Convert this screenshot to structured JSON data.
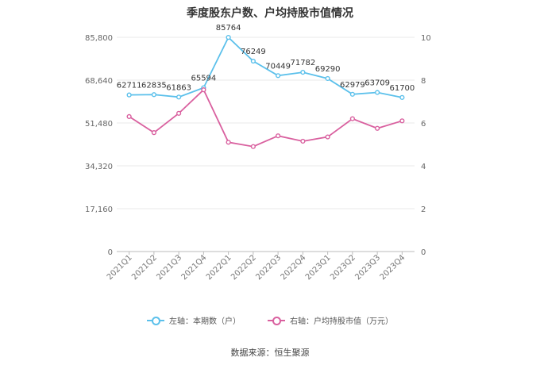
{
  "chart_data": {
    "type": "line",
    "title": "季度股东户数、户均持股市值情况",
    "categories": [
      "2021Q1",
      "2021Q2",
      "2021Q3",
      "2021Q4",
      "2022Q1",
      "2022Q2",
      "2022Q3",
      "2022Q4",
      "2023Q1",
      "2023Q2",
      "2023Q3",
      "2023Q4"
    ],
    "series": [
      {
        "name": "左轴：本期数（户）",
        "axis": "left",
        "color": "#5bc0eb",
        "values": [
          62711,
          62835,
          61863,
          65594,
          85764,
          76249,
          70449,
          71782,
          69290,
          62979,
          63709,
          61700
        ],
        "labels": [
          "62711",
          "62835",
          "61863",
          "65594",
          "85764",
          "76249",
          "70449",
          "71782",
          "69290",
          "62979",
          "63709",
          "61700"
        ]
      },
      {
        "name": "右轴：户均持股市值（万元）",
        "axis": "right",
        "color": "#d9609f",
        "values": [
          6.3,
          5.55,
          6.45,
          7.55,
          5.1,
          4.9,
          5.4,
          5.15,
          5.35,
          6.2,
          5.75,
          6.1
        ]
      }
    ],
    "left_axis": {
      "ticks": [
        "0",
        "17,160",
        "34,320",
        "51,480",
        "68,640",
        "85,800"
      ],
      "ylim": [
        0,
        85800
      ]
    },
    "right_axis": {
      "ticks": [
        "0",
        "2",
        "4",
        "6",
        "8",
        "10"
      ],
      "ylim": [
        0,
        10
      ]
    },
    "grid": true,
    "legend_position": "bottom"
  },
  "source_text": "数据来源：恒生聚源"
}
